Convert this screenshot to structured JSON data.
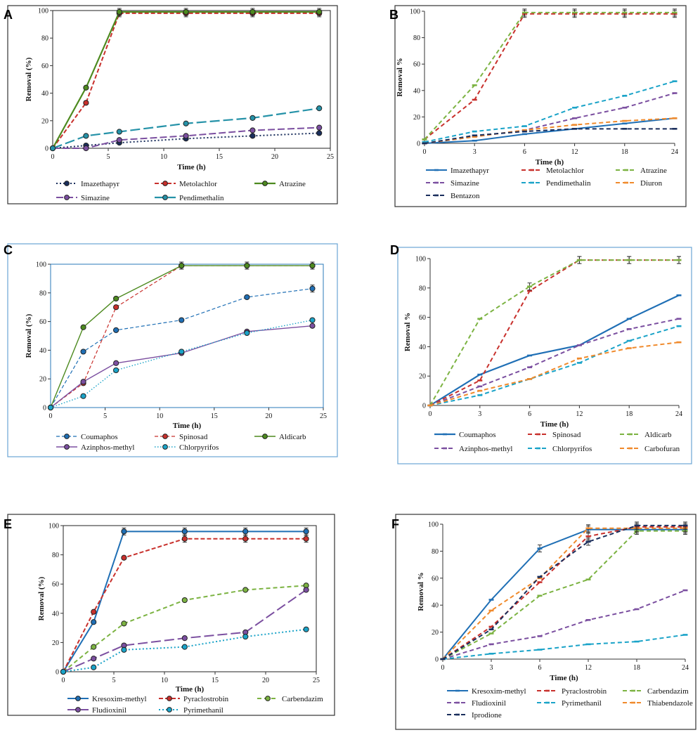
{
  "colors": {
    "blue": "#1f6fb5",
    "red": "#c8302c",
    "green": "#7cb342",
    "purple": "#7b4fa0",
    "cyan": "#1aa3c8",
    "orange": "#f08a2c",
    "navy": "#1a2e5c",
    "teal": "#2592a8",
    "olive": "#4d8a1f"
  },
  "chart_data": [
    {
      "panel": "A",
      "type": "line",
      "xlabel": "Time (h)",
      "ylabel": "Removal  (%)",
      "xlim": [
        0,
        25
      ],
      "ylim": [
        0,
        100
      ],
      "xticks": [
        "0",
        "5",
        "10",
        "15",
        "20",
        "25"
      ],
      "yticks": [
        "0",
        "20",
        "40",
        "60",
        "80",
        "100"
      ],
      "series": [
        {
          "name": "Imazethapyr",
          "x": [
            0,
            3,
            6,
            12,
            18,
            24
          ],
          "values": [
            0,
            2,
            4,
            7,
            9,
            11
          ]
        },
        {
          "name": "Metolachlor",
          "x": [
            0,
            3,
            6,
            12,
            18,
            24
          ],
          "values": [
            0,
            33,
            98,
            98,
            98,
            98
          ]
        },
        {
          "name": "Atrazine",
          "x": [
            0,
            3,
            6,
            12,
            18,
            24
          ],
          "values": [
            0,
            44,
            99,
            99,
            99,
            99
          ]
        },
        {
          "name": "Simazine",
          "x": [
            0,
            3,
            6,
            12,
            18,
            24
          ],
          "values": [
            0,
            0,
            6,
            9,
            13,
            15
          ]
        },
        {
          "name": "Pendimethalin",
          "x": [
            0,
            3,
            6,
            12,
            18,
            24
          ],
          "values": [
            0,
            9,
            12,
            18,
            22,
            29
          ]
        }
      ]
    },
    {
      "panel": "B",
      "type": "line",
      "xlabel": "Time (h)",
      "ylabel": "Removal  %",
      "xlim": [
        0,
        24
      ],
      "ylim": [
        0,
        100
      ],
      "xticks": [
        "0",
        "3",
        "6",
        "12",
        "18",
        "24"
      ],
      "yticks": [
        "0",
        "20",
        "40",
        "60",
        "80",
        "100"
      ],
      "series": [
        {
          "name": "Imazethapyr",
          "values": [
            0,
            2,
            7,
            11,
            15,
            19
          ]
        },
        {
          "name": "Metolachlor",
          "values": [
            3,
            33,
            98,
            98,
            98,
            98
          ]
        },
        {
          "name": "Atrazine",
          "values": [
            3,
            44,
            99,
            99,
            99,
            99
          ]
        },
        {
          "name": "Simazine",
          "values": [
            0,
            5,
            10,
            19,
            27,
            38
          ]
        },
        {
          "name": "Pendimethalin",
          "values": [
            1,
            9,
            13,
            27,
            36,
            47
          ]
        },
        {
          "name": "Diuron",
          "values": [
            0,
            5,
            10,
            14,
            17,
            19
          ]
        },
        {
          "name": "Bentazon",
          "values": [
            0,
            6,
            9,
            11,
            11,
            11
          ]
        }
      ]
    },
    {
      "panel": "C",
      "type": "line",
      "xlabel": "Time (h)",
      "ylabel": "Removal  (%)",
      "xlim": [
        0,
        25
      ],
      "ylim": [
        0,
        100
      ],
      "xticks": [
        "0",
        "5",
        "10",
        "15",
        "20",
        "25"
      ],
      "yticks": [
        "0",
        "20",
        "40",
        "60",
        "80",
        "100"
      ],
      "series": [
        {
          "name": "Coumaphos",
          "x": [
            0,
            3,
            6,
            12,
            18,
            24
          ],
          "values": [
            0,
            39,
            54,
            61,
            77,
            83
          ]
        },
        {
          "name": "Spinosad",
          "x": [
            0,
            3,
            6,
            12,
            18,
            24
          ],
          "values": [
            0,
            17,
            70,
            99,
            99,
            99
          ]
        },
        {
          "name": "Aldicarb",
          "x": [
            0,
            3,
            6,
            12,
            18,
            24
          ],
          "values": [
            0,
            56,
            76,
            99,
            99,
            99
          ]
        },
        {
          "name": "Azinphos-methyl",
          "x": [
            0,
            3,
            6,
            12,
            18,
            24
          ],
          "values": [
            0,
            18,
            31,
            38,
            53,
            57
          ]
        },
        {
          "name": "Chlorpyrifos",
          "x": [
            0,
            3,
            6,
            12,
            18,
            24
          ],
          "values": [
            0,
            8,
            26,
            39,
            52,
            61
          ]
        }
      ]
    },
    {
      "panel": "D",
      "type": "line",
      "xlabel": "Time (h)",
      "ylabel": "Removal  %",
      "xlim": [
        0,
        24
      ],
      "ylim": [
        0,
        100
      ],
      "xticks": [
        "0",
        "3",
        "6",
        "12",
        "18",
        "24"
      ],
      "yticks": [
        "0",
        "20",
        "40",
        "60",
        "80",
        "100"
      ],
      "series": [
        {
          "name": "Coumaphos",
          "values": [
            0,
            21,
            34,
            41,
            59,
            75
          ]
        },
        {
          "name": "Spinosad",
          "values": [
            0,
            17,
            78,
            99,
            99,
            99
          ]
        },
        {
          "name": "Aldicarb",
          "values": [
            0,
            59,
            81,
            99,
            99,
            99
          ]
        },
        {
          "name": "Azinphos-methyl",
          "values": [
            0,
            13,
            26,
            41,
            52,
            59
          ]
        },
        {
          "name": "Chlorpyrifos",
          "values": [
            0,
            7,
            18,
            29,
            44,
            54
          ]
        },
        {
          "name": "Carbofuran",
          "values": [
            0,
            10,
            18,
            32,
            39,
            43
          ]
        }
      ]
    },
    {
      "panel": "E",
      "type": "line",
      "xlabel": "Time (h)",
      "ylabel": "Removal  (%)",
      "xlim": [
        0,
        25
      ],
      "ylim": [
        0,
        100
      ],
      "xticks": [
        "0",
        "5",
        "10",
        "15",
        "20",
        "25"
      ],
      "yticks": [
        "0",
        "20",
        "40",
        "60",
        "80",
        "100"
      ],
      "series": [
        {
          "name": "Kresoxim-methyl",
          "x": [
            0,
            3,
            6,
            12,
            18,
            24
          ],
          "values": [
            0,
            34,
            96,
            96,
            96,
            96
          ]
        },
        {
          "name": "Pyraclostrobin",
          "x": [
            0,
            3,
            6,
            12,
            18,
            24
          ],
          "values": [
            0,
            41,
            78,
            91,
            91,
            91
          ]
        },
        {
          "name": "Carbendazim",
          "x": [
            0,
            3,
            6,
            12,
            18,
            24
          ],
          "values": [
            0,
            17,
            33,
            49,
            56,
            59
          ]
        },
        {
          "name": "Fludioxinil",
          "x": [
            0,
            3,
            6,
            12,
            18,
            24
          ],
          "values": [
            0,
            9,
            18,
            23,
            27,
            56
          ]
        },
        {
          "name": "Pyrimethanil",
          "x": [
            0,
            3,
            6,
            12,
            18,
            24
          ],
          "values": [
            0,
            3,
            15,
            17,
            24,
            29
          ]
        }
      ]
    },
    {
      "panel": "F",
      "type": "line",
      "xlabel": "Time (h)",
      "ylabel": "Removal  %",
      "xlim": [
        0,
        24
      ],
      "ylim": [
        0,
        100
      ],
      "xticks": [
        "0",
        "3",
        "6",
        "12",
        "18",
        "24"
      ],
      "yticks": [
        "0",
        "20",
        "40",
        "60",
        "80",
        "100"
      ],
      "series": [
        {
          "name": "Kresoxim-methyl",
          "values": [
            0,
            44,
            82,
            96,
            96,
            96
          ]
        },
        {
          "name": "Pyraclostrobin",
          "values": [
            0,
            24,
            57,
            91,
            98,
            98
          ]
        },
        {
          "name": "Carbendazim",
          "values": [
            0,
            19,
            47,
            59,
            95,
            95
          ]
        },
        {
          "name": "Fludioxinil",
          "values": [
            0,
            11,
            17,
            29,
            37,
            51
          ]
        },
        {
          "name": "Pyrimethanil",
          "values": [
            0,
            4,
            7,
            11,
            13,
            18
          ]
        },
        {
          "name": "Thiabendazole",
          "values": [
            0,
            36,
            60,
            97,
            97,
            97
          ]
        },
        {
          "name": "Iprodione",
          "values": [
            0,
            22,
            61,
            87,
            99,
            99
          ]
        }
      ]
    }
  ]
}
